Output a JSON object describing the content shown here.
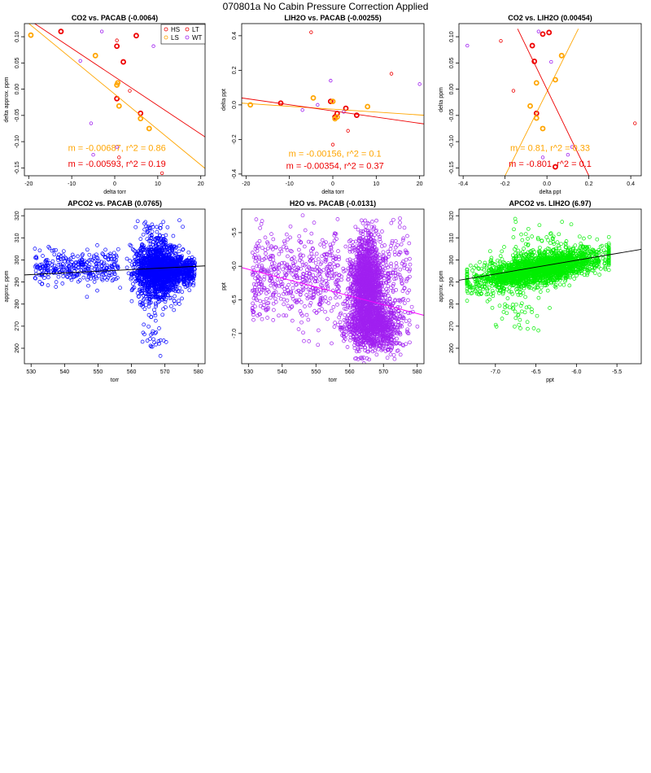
{
  "page": {
    "title": "070801a   No Cabin Pressure Correction Applied"
  },
  "colors": {
    "HS": "#ee0000",
    "LS": "#ffa500",
    "LT": "#ee0000",
    "WT": "#a020f0",
    "blue": "#0000ff",
    "purple": "#a020f0",
    "green": "#00ee00",
    "magenta": "#ff00ff",
    "black": "#000000"
  },
  "legend": {
    "entries": [
      {
        "label": "HS",
        "color": "#ee0000"
      },
      {
        "label": "LT",
        "color": "#ee0000"
      },
      {
        "label": "LS",
        "color": "#ffa500"
      },
      {
        "label": "WT",
        "color": "#a020f0"
      }
    ]
  },
  "chart_data": [
    {
      "id": "p1",
      "type": "scatter",
      "title": "CO2 vs. PACAB (-0.0064)",
      "xlabel": "delta torr",
      "ylabel": "delta approx. ppm",
      "xlim": [
        -21,
        21
      ],
      "ylim": [
        -0.165,
        0.125
      ],
      "xticks": [
        -20,
        -10,
        0,
        10,
        20
      ],
      "yticks": [
        -0.15,
        -0.1,
        -0.05,
        0,
        0.05,
        0.1
      ],
      "xtick_labels": [
        "-20",
        "-10",
        "0",
        "10",
        "20"
      ],
      "ytick_labels": [
        "-0.15",
        "-0.10",
        "-0.05",
        "0.00",
        "0.05",
        "0.10"
      ],
      "has_legend": true,
      "series": [
        {
          "name": "HS",
          "color": "#ee0000",
          "bold": true,
          "points": [
            [
              -12.5,
              0.11
            ],
            [
              0.5,
              0.082
            ],
            [
              2,
              0.052
            ],
            [
              5,
              0.102
            ],
            [
              6,
              -0.046
            ],
            [
              0.5,
              -0.018
            ]
          ]
        },
        {
          "name": "LS",
          "color": "#ffa500",
          "bold": true,
          "points": [
            [
              -19.5,
              0.103
            ],
            [
              -4.5,
              0.064
            ],
            [
              0.7,
              0.012
            ],
            [
              1,
              -0.032
            ],
            [
              6,
              -0.056
            ],
            [
              8,
              -0.075
            ],
            [
              0.5,
              0.008
            ]
          ]
        },
        {
          "name": "LT",
          "color": "#ee0000",
          "bold": false,
          "points": [
            [
              0.5,
              0.093
            ],
            [
              3.5,
              -0.003
            ],
            [
              11,
              -0.16
            ],
            [
              1,
              -0.13
            ]
          ]
        },
        {
          "name": "WT",
          "color": "#a020f0",
          "bold": false,
          "points": [
            [
              -3,
              0.11
            ],
            [
              -8,
              0.054
            ],
            [
              -5.5,
              -0.065
            ],
            [
              -5,
              -0.125
            ],
            [
              9,
              0.082
            ],
            [
              0.5,
              -0.11
            ]
          ]
        }
      ],
      "lines": [
        {
          "color": "#ffa500",
          "x": [
            -21,
            21
          ],
          "y": [
            0.132,
            -0.151
          ]
        },
        {
          "color": "#ee0000",
          "x": [
            -21,
            21
          ],
          "y": [
            0.138,
            -0.091
          ]
        }
      ],
      "annotations": [
        {
          "text": "m = -0.00687, r^2 = 0.86",
          "color": "#ffa500",
          "x": 0.5,
          "y": -0.118
        },
        {
          "text": "m = -0.00593, r^2 = 0.19",
          "color": "#ee0000",
          "x": 0.5,
          "y": -0.148
        }
      ]
    },
    {
      "id": "p2",
      "type": "scatter",
      "title": "LIH2O vs. PACAB (-0.00255)",
      "xlabel": "delta torr",
      "ylabel": "delta ppt",
      "xlim": [
        -21,
        21
      ],
      "ylim": [
        -0.41,
        0.47
      ],
      "xticks": [
        -20,
        -10,
        0,
        10,
        20
      ],
      "yticks": [
        -0.4,
        -0.2,
        0,
        0.2,
        0.4
      ],
      "xtick_labels": [
        "-20",
        "-10",
        "0",
        "10",
        "20"
      ],
      "ytick_labels": [
        "-0.4",
        "-0.2",
        "0.0",
        "0.2",
        "0.4"
      ],
      "has_legend": false,
      "series": [
        {
          "name": "HS",
          "color": "#ee0000",
          "bold": true,
          "points": [
            [
              -12,
              0.01
            ],
            [
              -0.5,
              0.02
            ],
            [
              0.5,
              -0.07
            ],
            [
              1,
              -0.05
            ],
            [
              3,
              -0.02
            ],
            [
              5.5,
              -0.06
            ]
          ]
        },
        {
          "name": "LS",
          "color": "#ffa500",
          "bold": true,
          "points": [
            [
              -19,
              0.0
            ],
            [
              -4.5,
              0.04
            ],
            [
              0,
              0.02
            ],
            [
              1,
              -0.07
            ],
            [
              8,
              -0.01
            ],
            [
              0.5,
              -0.08
            ]
          ]
        },
        {
          "name": "LT",
          "color": "#ee0000",
          "bold": false,
          "points": [
            [
              -5,
              0.42
            ],
            [
              13.5,
              0.18
            ],
            [
              3.5,
              -0.15
            ],
            [
              0,
              -0.23
            ]
          ]
        },
        {
          "name": "WT",
          "color": "#a020f0",
          "bold": false,
          "points": [
            [
              -0.5,
              0.14
            ],
            [
              -3.5,
              0.0
            ],
            [
              2.5,
              -0.04
            ],
            [
              -7,
              -0.03
            ],
            [
              20,
              0.12
            ]
          ]
        }
      ],
      "lines": [
        {
          "color": "#ffa500",
          "x": [
            -21,
            21
          ],
          "y": [
            0.01,
            -0.06
          ]
        },
        {
          "color": "#ee0000",
          "x": [
            -21,
            21
          ],
          "y": [
            0.04,
            -0.11
          ]
        }
      ],
      "annotations": [
        {
          "text": "m = -0.00156, r^2 = 0.1",
          "color": "#ffa500",
          "x": 0.5,
          "y": -0.3
        },
        {
          "text": "m = -0.00354, r^2 = 0.37",
          "color": "#ee0000",
          "x": 0.5,
          "y": -0.37
        }
      ]
    },
    {
      "id": "p3",
      "type": "scatter",
      "title": "CO2 vs. LIH2O (0.00454)",
      "xlabel": "delta ppt",
      "ylabel": "delta ppm",
      "xlim": [
        -0.42,
        0.45
      ],
      "ylim": [
        -0.165,
        0.125
      ],
      "xticks": [
        -0.4,
        -0.2,
        0,
        0.2,
        0.4
      ],
      "yticks": [
        -0.15,
        -0.1,
        -0.05,
        0,
        0.05,
        0.1
      ],
      "xtick_labels": [
        "-0.4",
        "-0.2",
        "0.0",
        "0.2",
        "0.4"
      ],
      "ytick_labels": [
        "-0.15",
        "-0.10",
        "-0.05",
        "0.00",
        "0.05",
        "0.10"
      ],
      "has_legend": false,
      "series": [
        {
          "name": "HS",
          "color": "#ee0000",
          "bold": true,
          "points": [
            [
              -0.07,
              0.083
            ],
            [
              -0.06,
              0.053
            ],
            [
              -0.05,
              -0.046
            ],
            [
              0.01,
              0.108
            ],
            [
              -0.02,
              0.105
            ],
            [
              0.04,
              -0.148
            ]
          ]
        },
        {
          "name": "LS",
          "color": "#ffa500",
          "bold": true,
          "points": [
            [
              -0.05,
              0.012
            ],
            [
              -0.08,
              -0.032
            ],
            [
              -0.05,
              -0.055
            ],
            [
              -0.02,
              -0.075
            ],
            [
              0.07,
              0.064
            ],
            [
              0.04,
              0.018
            ]
          ]
        },
        {
          "name": "LT",
          "color": "#ee0000",
          "bold": false,
          "points": [
            [
              -0.22,
              0.092
            ],
            [
              -0.16,
              -0.003
            ],
            [
              0.42,
              -0.065
            ]
          ]
        },
        {
          "name": "WT",
          "color": "#a020f0",
          "bold": false,
          "points": [
            [
              -0.38,
              0.083
            ],
            [
              -0.04,
              0.11
            ],
            [
              0.02,
              0.052
            ],
            [
              -0.02,
              -0.13
            ],
            [
              0.12,
              -0.11
            ],
            [
              0.1,
              -0.125
            ]
          ]
        }
      ],
      "lines": [
        {
          "color": "#ffa500",
          "x": [
            -0.2,
            0.15
          ],
          "y": [
            -0.165,
            0.115
          ]
        },
        {
          "color": "#ee0000",
          "x": [
            -0.14,
            0.2
          ],
          "y": [
            0.115,
            -0.165
          ]
        }
      ],
      "annotations": [
        {
          "text": "m = 0.81, r^2 = 0.33",
          "color": "#ffa500",
          "x": 0.015,
          "y": -0.118
        },
        {
          "text": "m = -0.801, r^2 = 0.1",
          "color": "#ee0000",
          "x": 0.015,
          "y": -0.148
        }
      ]
    },
    {
      "id": "p4",
      "type": "scatter",
      "title": "APCO2 vs. PACAB (0.0765)",
      "xlabel": "torr",
      "ylabel": "approx. ppm",
      "xlim": [
        528,
        582
      ],
      "ylim": [
        253,
        323
      ],
      "xticks": [
        530,
        540,
        550,
        560,
        570,
        580
      ],
      "yticks": [
        260,
        270,
        280,
        290,
        300,
        310,
        320
      ],
      "xtick_labels": [
        "530",
        "540",
        "550",
        "560",
        "570",
        "580"
      ],
      "ytick_labels": [
        "260",
        "270",
        "280",
        "290",
        "300",
        "310",
        "320"
      ],
      "has_legend": false,
      "cloud": {
        "color": "#0000ff",
        "seed": 11,
        "clusters": [
          {
            "n": 320,
            "xmin": 531,
            "xmax": 556,
            "ymean": 296.5,
            "ysd": 3.5
          },
          {
            "n": 1500,
            "xmean": 567.5,
            "xsd": 3.3,
            "ymean": 295.5,
            "ysd": 6.5
          },
          {
            "n": 500,
            "xmin": 569,
            "xmax": 579,
            "ymean": 295.5,
            "ysd": 3.2
          },
          {
            "n": 30,
            "xmean": 566.5,
            "xsd": 2,
            "ymean": 267,
            "ysd": 5
          },
          {
            "n": 30,
            "xmean": 566,
            "xsd": 2.5,
            "ymean": 312,
            "ysd": 4
          }
        ]
      },
      "lines": [
        {
          "color": "#000000",
          "x": [
            528,
            582
          ],
          "y": [
            293.2,
            297.3
          ]
        }
      ]
    },
    {
      "id": "p5",
      "type": "scatter",
      "title": "H2O vs. PACAB (-0.0131)",
      "xlabel": "torr",
      "ylabel": "ppt",
      "xlim": [
        528,
        582
      ],
      "ylim": [
        -7.45,
        -5.15
      ],
      "xticks": [
        530,
        540,
        550,
        560,
        570,
        580
      ],
      "yticks": [
        -7,
        -6.5,
        -6,
        -5.5
      ],
      "xtick_labels": [
        "530",
        "540",
        "550",
        "560",
        "570",
        "580"
      ],
      "ytick_labels": [
        "-7.0",
        "-6.5",
        "-6.0",
        "-5.5"
      ],
      "has_legend": false,
      "cloud": {
        "color": "#a020f0",
        "seed": 23,
        "clusters": [
          {
            "n": 520,
            "xmin": 531,
            "xmax": 557,
            "ymean": -6.2,
            "ysd": 0.33
          },
          {
            "n": 1200,
            "xmean": 565,
            "xsd": 2.6,
            "ymean": -6.25,
            "ysd": 0.28
          },
          {
            "n": 1100,
            "xmean": 567,
            "xsd": 4,
            "ymean": -6.88,
            "ysd": 0.18
          },
          {
            "n": 250,
            "xmin": 560,
            "xmax": 578,
            "ymean": -6.05,
            "ysd": 0.35
          },
          {
            "n": 60,
            "xmean": 565,
            "xsd": 2,
            "ymean": -5.6,
            "ysd": 0.12
          }
        ]
      },
      "lines": [
        {
          "color": "#ff00ff",
          "x": [
            528,
            582
          ],
          "y": [
            -6.02,
            -6.73
          ]
        }
      ]
    },
    {
      "id": "p6",
      "type": "scatter",
      "title": "APCO2 vs. LIH2O (6.97)",
      "xlabel": "ppt",
      "ylabel": "approx. ppm",
      "xlim": [
        -7.45,
        -5.2
      ],
      "ylim": [
        253,
        323
      ],
      "xticks": [
        -7,
        -6.5,
        -6,
        -5.5
      ],
      "yticks": [
        260,
        270,
        280,
        290,
        300,
        310,
        320
      ],
      "xtick_labels": [
        "-7.0",
        "-6.5",
        "-6.0",
        "-5.5"
      ],
      "ytick_labels": [
        "260",
        "270",
        "280",
        "290",
        "300",
        "310",
        "320"
      ],
      "has_legend": false,
      "cloud": {
        "color": "#00ee00",
        "seed": 37,
        "correlated": true,
        "clusters": [
          {
            "n": 2300,
            "xmean": -6.45,
            "xsd": 0.4,
            "ymean": 296,
            "ysd": 3.6,
            "slope": 6.97,
            "xclip": [
              -7.35,
              -5.6
            ]
          },
          {
            "n": 45,
            "xmean": -6.75,
            "xsd": 0.18,
            "ymean": 276,
            "ysd": 7,
            "slope": 0
          },
          {
            "n": 40,
            "xmean": -6.55,
            "xsd": 0.3,
            "ymean": 310,
            "ysd": 4,
            "slope": 0
          }
        ]
      },
      "lines": [
        {
          "color": "#000000",
          "x": [
            -7.45,
            -5.2
          ],
          "y": [
            290.8,
            304.8
          ]
        }
      ]
    }
  ]
}
